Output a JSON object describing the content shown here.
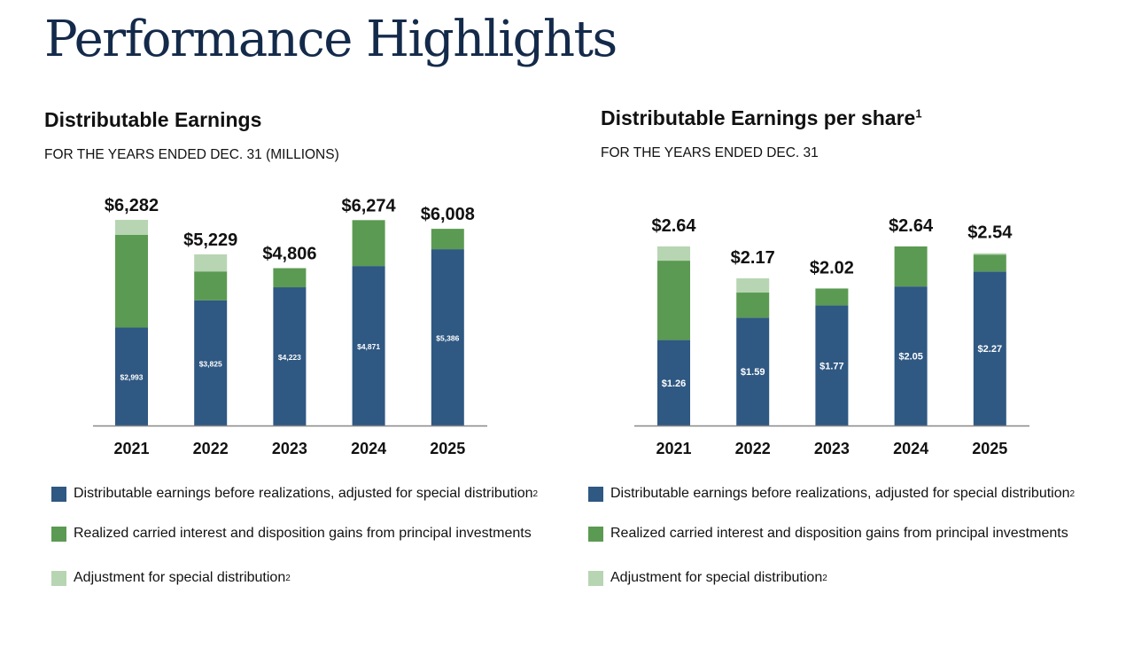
{
  "page": {
    "title": "Performance Highlights"
  },
  "colors": {
    "before_realizations": "#2f5882",
    "realized": "#5b9a52",
    "adjustment": "#b7d5b2",
    "axis": "#888888",
    "title": "#142a4a"
  },
  "chart_data": [
    {
      "type": "bar",
      "stacked": true,
      "title": "Distributable Earnings",
      "subtitle": "FOR THE YEARS ENDED DEC. 31 (MILLIONS)",
      "xlabel": "",
      "ylabel": "",
      "ylim": [
        0,
        6800
      ],
      "grid": false,
      "legend_position": "bottom",
      "categories": [
        "2021",
        "2022",
        "2023",
        "2024",
        "2025"
      ],
      "totals": [
        "$6,282",
        "$5,229",
        "$4,806",
        "$6,274",
        "$6,008"
      ],
      "total_values": [
        6282,
        5229,
        4806,
        6274,
        6008
      ],
      "series": [
        {
          "name": "Distributable earnings before realizations, adjusted for special distribution",
          "footnote": "2",
          "color_key": "before_realizations",
          "values": [
            2993,
            3825,
            4223,
            4871,
            5386
          ],
          "labels": [
            "$2,993",
            "$3,825",
            "$4,223",
            "$4,871",
            "$5,386"
          ]
        },
        {
          "name": "Realized carried interest and disposition gains from principal investments",
          "footnote": "",
          "color_key": "realized",
          "values": [
            2834,
            881,
            583,
            1403,
            622
          ],
          "labels": []
        },
        {
          "name": "Adjustment for special distribution",
          "footnote": "2",
          "color_key": "adjustment",
          "values": [
            455,
            523,
            0,
            0,
            0
          ],
          "labels": []
        }
      ]
    },
    {
      "type": "bar",
      "stacked": true,
      "title": "Distributable Earnings per share",
      "title_footnote": "1",
      "subtitle": "FOR THE YEARS ENDED DEC. 31",
      "xlabel": "",
      "ylabel": "",
      "ylim": [
        0,
        3.2
      ],
      "grid": false,
      "legend_position": "bottom",
      "categories": [
        "2021",
        "2022",
        "2023",
        "2024",
        "2025"
      ],
      "totals": [
        "$2.64",
        "$2.17",
        "$2.02",
        "$2.64",
        "$2.54"
      ],
      "total_values": [
        2.64,
        2.17,
        2.02,
        2.64,
        2.54
      ],
      "series": [
        {
          "name": "Distributable earnings before realizations, adjusted for special distribution",
          "footnote": "2",
          "color_key": "before_realizations",
          "values": [
            1.26,
            1.59,
            1.77,
            2.05,
            2.27
          ],
          "labels": [
            "$1.26",
            "$1.59",
            "$1.77",
            "$2.05",
            "$2.27"
          ]
        },
        {
          "name": "Realized carried interest and disposition gains from principal investments",
          "footnote": "",
          "color_key": "realized",
          "values": [
            1.17,
            0.37,
            0.25,
            0.59,
            0.25
          ],
          "labels": []
        },
        {
          "name": "Adjustment for special distribution",
          "footnote": "2",
          "color_key": "adjustment",
          "values": [
            0.21,
            0.21,
            0,
            0,
            0.02
          ],
          "labels": []
        }
      ]
    }
  ]
}
